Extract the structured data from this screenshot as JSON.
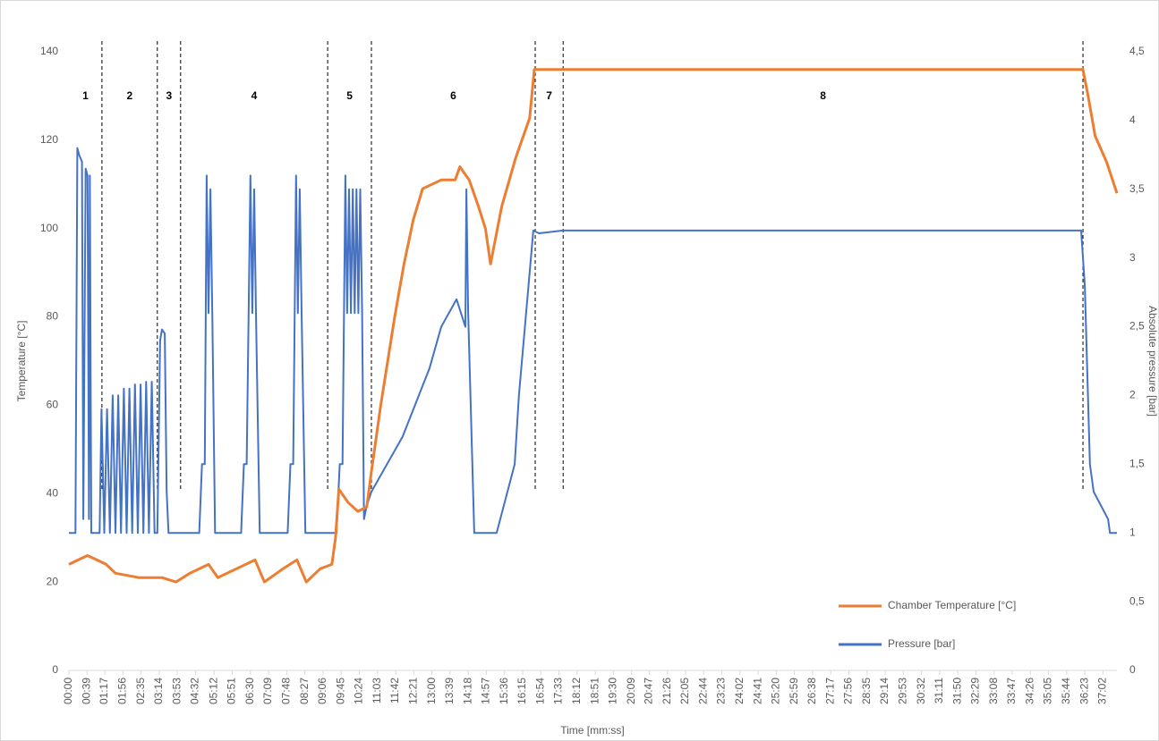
{
  "chart_data": {
    "type": "line",
    "xlabel": "Time [mm:ss]",
    "ylabel": "Temperature [°C]",
    "y2label": "Absolute pressure [bar]",
    "xlim": [
      0,
      2252
    ],
    "xticks": [
      {
        "value": 0,
        "label": "00:00"
      },
      {
        "value": 39,
        "label": "00:39"
      },
      {
        "value": 77,
        "label": "01:17"
      },
      {
        "value": 116,
        "label": "01:56"
      },
      {
        "value": 155,
        "label": "02:35"
      },
      {
        "value": 194,
        "label": "03:14"
      },
      {
        "value": 233,
        "label": "03:53"
      },
      {
        "value": 272,
        "label": "04:32"
      },
      {
        "value": 312,
        "label": "05:12"
      },
      {
        "value": 351,
        "label": "05:51"
      },
      {
        "value": 390,
        "label": "06:30"
      },
      {
        "value": 429,
        "label": "07:09"
      },
      {
        "value": 468,
        "label": "07:48"
      },
      {
        "value": 507,
        "label": "08:27"
      },
      {
        "value": 546,
        "label": "09:06"
      },
      {
        "value": 585,
        "label": "09:45"
      },
      {
        "value": 624,
        "label": "10:24"
      },
      {
        "value": 663,
        "label": "11:03"
      },
      {
        "value": 702,
        "label": "11:42"
      },
      {
        "value": 741,
        "label": "12:21"
      },
      {
        "value": 780,
        "label": "13:00"
      },
      {
        "value": 819,
        "label": "13:39"
      },
      {
        "value": 858,
        "label": "14:18"
      },
      {
        "value": 897,
        "label": "14:57"
      },
      {
        "value": 936,
        "label": "15:36"
      },
      {
        "value": 975,
        "label": "16:15"
      },
      {
        "value": 1014,
        "label": "16:54"
      },
      {
        "value": 1053,
        "label": "17:33"
      },
      {
        "value": 1092,
        "label": "18:12"
      },
      {
        "value": 1131,
        "label": "18:51"
      },
      {
        "value": 1170,
        "label": "19:30"
      },
      {
        "value": 1209,
        "label": "20:09"
      },
      {
        "value": 1247,
        "label": "20:47"
      },
      {
        "value": 1286,
        "label": "21:26"
      },
      {
        "value": 1325,
        "label": "22:05"
      },
      {
        "value": 1364,
        "label": "22:44"
      },
      {
        "value": 1403,
        "label": "23:23"
      },
      {
        "value": 1442,
        "label": "24:02"
      },
      {
        "value": 1481,
        "label": "24:41"
      },
      {
        "value": 1520,
        "label": "25:20"
      },
      {
        "value": 1559,
        "label": "25:59"
      },
      {
        "value": 1598,
        "label": "26:38"
      },
      {
        "value": 1637,
        "label": "27:17"
      },
      {
        "value": 1676,
        "label": "27:56"
      },
      {
        "value": 1715,
        "label": "28:35"
      },
      {
        "value": 1754,
        "label": "29:14"
      },
      {
        "value": 1793,
        "label": "29:53"
      },
      {
        "value": 1832,
        "label": "30:32"
      },
      {
        "value": 1871,
        "label": "31:11"
      },
      {
        "value": 1910,
        "label": "31:50"
      },
      {
        "value": 1949,
        "label": "32:29"
      },
      {
        "value": 1988,
        "label": "33:08"
      },
      {
        "value": 2027,
        "label": "33:47"
      },
      {
        "value": 2066,
        "label": "34:26"
      },
      {
        "value": 2105,
        "label": "35:05"
      },
      {
        "value": 2144,
        "label": "35:44"
      },
      {
        "value": 2183,
        "label": "36:23"
      },
      {
        "value": 2222,
        "label": "37:02"
      }
    ],
    "ylim": [
      0,
      140
    ],
    "yticks": [
      0,
      20,
      40,
      60,
      80,
      100,
      120,
      140
    ],
    "y2lim": [
      0,
      4.5
    ],
    "y2ticks": [
      0,
      {
        "value": 0.5,
        "label": "0,5"
      },
      1,
      {
        "value": 1.5,
        "label": "1,5"
      },
      2,
      {
        "value": 2.5,
        "label": "2,5"
      },
      3,
      {
        "value": 3.5,
        "label": "3,5"
      },
      4,
      {
        "value": 4.5,
        "label": "4,5"
      }
    ],
    "grid": false,
    "legend": "lower right",
    "phase_labels": [
      "1",
      "2",
      "3",
      "4",
      "5",
      "6",
      "7",
      "8"
    ],
    "phase_boundaries": [
      71,
      190,
      240,
      556,
      650,
      1002,
      1062,
      2179
    ],
    "series": [
      {
        "name": "Chamber Temperature [°C]",
        "color": "#ed7d31",
        "x": [
          0,
          20,
          40,
          60,
          80,
          100,
          150,
          200,
          230,
          260,
          300,
          320,
          360,
          400,
          420,
          460,
          490,
          510,
          540,
          565,
          573,
          580,
          600,
          621,
          640,
          650,
          670,
          700,
          720,
          740,
          760,
          800,
          830,
          840,
          860,
          880,
          895,
          906,
          930,
          960,
          990,
          1000,
          1050,
          1500,
          2179,
          2190,
          2205,
          2230,
          2252
        ],
        "values": [
          24,
          25,
          26,
          25,
          24,
          22,
          21,
          21,
          20,
          22,
          24,
          21,
          23,
          25,
          20,
          23,
          25,
          20,
          23,
          24,
          30,
          41,
          38,
          36,
          37,
          45,
          60,
          80,
          92,
          102,
          109,
          111,
          111,
          114,
          111,
          105,
          100,
          92,
          105,
          116,
          125,
          136,
          136,
          136,
          136,
          130,
          121,
          115,
          108
        ]
      },
      {
        "name": "Pressure [bar]",
        "color": "#4472c4",
        "axis": "y2",
        "x": [
          0,
          14,
          18,
          22,
          28,
          31,
          36,
          40,
          43,
          45,
          48,
          60,
          66,
          70,
          76,
          82,
          88,
          94,
          100,
          106,
          112,
          118,
          124,
          130,
          136,
          142,
          148,
          154,
          160,
          166,
          172,
          178,
          184,
          190,
          196,
          200,
          206,
          210,
          214,
          280,
          286,
          292,
          296,
          300,
          304,
          308,
          314,
          370,
          376,
          382,
          390,
          394,
          398,
          402,
          410,
          470,
          476,
          482,
          488,
          492,
          496,
          500,
          508,
          575,
          582,
          588,
          594,
          598,
          602,
          606,
          610,
          614,
          618,
          622,
          626,
          630,
          634,
          640,
          650,
          717,
          775,
          800,
          833,
          852,
          854,
          858,
          871,
          919,
          958,
          967,
          998,
          1010,
          1062,
          2175,
          2183,
          2194,
          2202,
          2233,
          2237,
          2252
        ],
        "values": [
          1.0,
          1.0,
          3.8,
          3.75,
          3.7,
          1.1,
          3.65,
          3.6,
          1.1,
          3.6,
          1.0,
          1.0,
          1.0,
          1.9,
          1.0,
          1.9,
          1.0,
          2.0,
          1.0,
          2.0,
          1.0,
          2.05,
          1.0,
          2.05,
          1.0,
          2.08,
          1.0,
          2.08,
          1.0,
          2.1,
          1.0,
          2.1,
          1.0,
          1.0,
          2.4,
          2.48,
          2.45,
          1.3,
          1.0,
          1.0,
          1.5,
          1.5,
          3.6,
          2.6,
          3.5,
          2.6,
          1.0,
          1.0,
          1.5,
          1.5,
          3.6,
          2.6,
          3.5,
          2.6,
          1.0,
          1.0,
          1.5,
          1.5,
          3.6,
          2.6,
          3.5,
          2.6,
          1.0,
          1.0,
          1.5,
          1.5,
          3.6,
          2.6,
          3.5,
          2.6,
          3.5,
          2.6,
          3.5,
          2.6,
          3.5,
          2.6,
          1.1,
          1.2,
          1.3,
          1.7,
          2.2,
          2.5,
          2.7,
          2.5,
          3.5,
          2.6,
          1.0,
          1.0,
          1.5,
          2.0,
          3.2,
          3.18,
          3.2,
          3.2,
          2.8,
          1.5,
          1.3,
          1.1,
          1.0,
          1.0
        ]
      }
    ]
  }
}
